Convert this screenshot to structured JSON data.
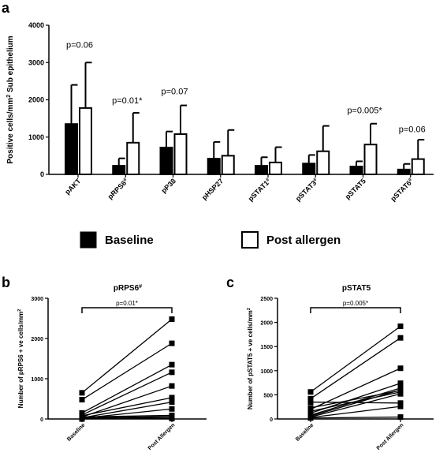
{
  "panels": {
    "a": "a",
    "b": "b",
    "c": "c"
  },
  "legend": {
    "baseline": "Baseline",
    "post": "Post allergen"
  },
  "chart_data": [
    {
      "type": "bar",
      "ylabel": "Positive cells/mm² Sub epithelium",
      "ylim": [
        0,
        4000
      ],
      "yticks": [
        "0",
        "1000",
        "2000",
        "3000",
        "4000"
      ],
      "categories": [
        "pAKT",
        "pRPS6#",
        "pP38",
        "pHSP27",
        "pSTAT1#",
        "pSTAT3#",
        "pSTAT5",
        "pSTAT6#"
      ],
      "series": [
        {
          "name": "Baseline",
          "color": "#000000",
          "values": [
            1350,
            230,
            720,
            420,
            230,
            290,
            210,
            130
          ],
          "error_upper": [
            2400,
            430,
            1150,
            870,
            460,
            520,
            350,
            280
          ]
        },
        {
          "name": "Post allergen",
          "color": "#ffffff",
          "values": [
            1780,
            850,
            1080,
            500,
            320,
            620,
            800,
            410
          ],
          "error_upper": [
            3000,
            1650,
            1850,
            1190,
            730,
            1300,
            1360,
            930
          ]
        }
      ],
      "annotations": [
        {
          "category": "pAKT",
          "text": "p=0.06",
          "y": 3400
        },
        {
          "category": "pRPS6#",
          "text": "p=0.01*",
          "y": 1900
        },
        {
          "category": "pP38",
          "text": "p=0.07",
          "y": 2150
        },
        {
          "category": "pSTAT5",
          "text": "p=0.005*",
          "y": 1640
        },
        {
          "category": "pSTAT6#",
          "text": "p=0.06",
          "y": 1130
        }
      ]
    },
    {
      "type": "line",
      "title": "pRPS6#",
      "ylabel": "Number of pRPS6 + ve cells/mm²",
      "ylim": [
        0,
        3000
      ],
      "yticks": [
        "0",
        "1000",
        "2000",
        "3000"
      ],
      "x": [
        "Baseline",
        "Post Allergen"
      ],
      "annotation": "p=0.01*",
      "pairs": [
        [
          650,
          2480
        ],
        [
          480,
          1880
        ],
        [
          150,
          1350
        ],
        [
          100,
          1160
        ],
        [
          50,
          820
        ],
        [
          80,
          530
        ],
        [
          30,
          420
        ],
        [
          20,
          250
        ],
        [
          50,
          90
        ],
        [
          30,
          60
        ],
        [
          0,
          10
        ],
        [
          10,
          40
        ]
      ]
    },
    {
      "type": "line",
      "title": "pSTAT5",
      "ylabel": "Number of pSTAT5 + ve cells/mm²",
      "ylim": [
        0,
        2500
      ],
      "yticks": [
        "0",
        "500",
        "1000",
        "1500",
        "2000",
        "2500"
      ],
      "x": [
        "Baseline",
        "Post Allergen"
      ],
      "annotation": "p=0.005*",
      "pairs": [
        [
          560,
          1920
        ],
        [
          420,
          1680
        ],
        [
          200,
          1050
        ],
        [
          120,
          740
        ],
        [
          80,
          640
        ],
        [
          230,
          590
        ],
        [
          160,
          560
        ],
        [
          40,
          520
        ],
        [
          350,
          330
        ],
        [
          30,
          260
        ],
        [
          20,
          40
        ],
        [
          60,
          600
        ]
      ]
    }
  ]
}
